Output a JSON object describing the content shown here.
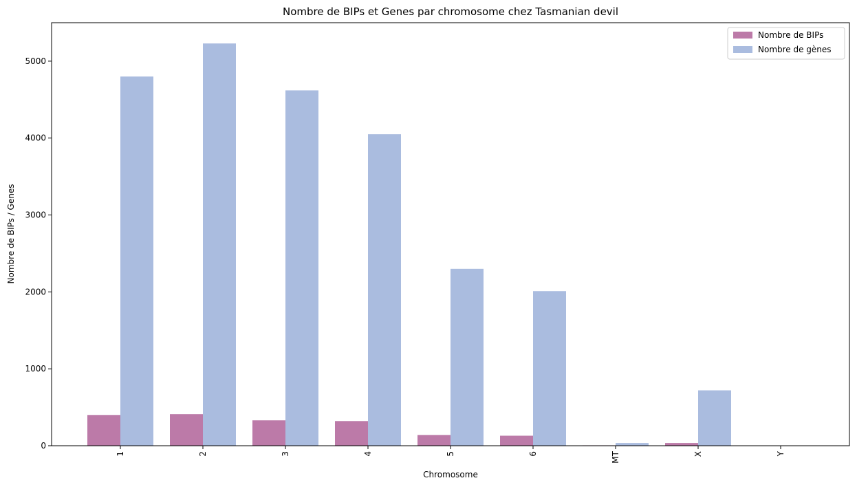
{
  "chart_data": {
    "type": "bar",
    "title": "Nombre de BIPs et Genes par chromosome chez Tasmanian devil",
    "xlabel": "Chromosome",
    "ylabel": "Nombre de BIPs / Genes",
    "categories": [
      "1",
      "2",
      "3",
      "4",
      "5",
      "6",
      "MT",
      "X",
      "Y"
    ],
    "ylim": [
      0,
      5500
    ],
    "yticks": [
      0,
      1000,
      2000,
      3000,
      4000,
      5000
    ],
    "grid": false,
    "legend_position": "top-right",
    "series": [
      {
        "name": "Nombre de BIPs",
        "color": "#bc7aa8",
        "values": [
          400,
          410,
          330,
          320,
          140,
          130,
          5,
          35,
          0
        ]
      },
      {
        "name": "Nombre de gènes",
        "color": "#aabcdf",
        "values": [
          4800,
          5230,
          4620,
          4050,
          2300,
          2010,
          35,
          720,
          0
        ]
      }
    ]
  }
}
